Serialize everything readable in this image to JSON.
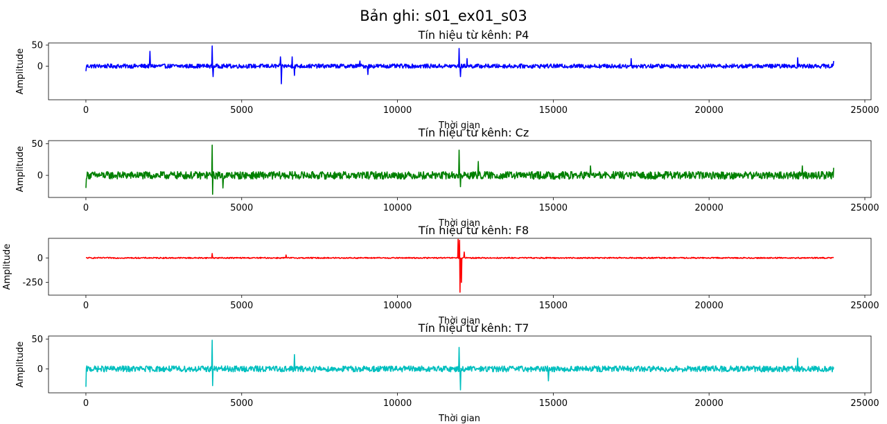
{
  "figure": {
    "title": "Bản ghi: s01_ex01_s03"
  },
  "chart_data": [
    {
      "type": "line",
      "title": "Tín hiệu từ kênh: P4",
      "xlabel": "Thời gian",
      "ylabel": "Amplitude",
      "color": "#0000ff",
      "xlim": [
        -1200,
        25200
      ],
      "ylim": [
        -80,
        55
      ],
      "xticks": [
        0,
        5000,
        10000,
        15000,
        20000,
        25000
      ],
      "yticks": [
        0,
        50
      ],
      "baseline_noise_amplitude": 5,
      "x_range": [
        0,
        24000
      ],
      "peaks": [
        {
          "x": 0,
          "y": -12
        },
        {
          "x": 2060,
          "y": 35
        },
        {
          "x": 4060,
          "y": 48
        },
        {
          "x": 4080,
          "y": -25
        },
        {
          "x": 6280,
          "y": -42
        },
        {
          "x": 6250,
          "y": 22
        },
        {
          "x": 6620,
          "y": 22
        },
        {
          "x": 6700,
          "y": -22
        },
        {
          "x": 8800,
          "y": 12
        },
        {
          "x": 9050,
          "y": -20
        },
        {
          "x": 11980,
          "y": 42
        },
        {
          "x": 12020,
          "y": -25
        },
        {
          "x": 12230,
          "y": 18
        },
        {
          "x": 17500,
          "y": 18
        },
        {
          "x": 22850,
          "y": 20
        },
        {
          "x": 24000,
          "y": 12
        }
      ]
    },
    {
      "type": "line",
      "title": "Tín hiệu từ kênh: Cz",
      "xlabel": "Thời gian",
      "ylabel": "Amplitude",
      "color": "#008000",
      "xlim": [
        -1200,
        25200
      ],
      "ylim": [
        -35,
        55
      ],
      "xticks": [
        0,
        5000,
        10000,
        15000,
        20000,
        25000
      ],
      "yticks": [
        0,
        50
      ],
      "baseline_noise_amplitude": 6,
      "x_range": [
        0,
        24000
      ],
      "peaks": [
        {
          "x": 0,
          "y": -20
        },
        {
          "x": 4050,
          "y": 48
        },
        {
          "x": 4070,
          "y": -30
        },
        {
          "x": 4400,
          "y": -20
        },
        {
          "x": 11980,
          "y": 40
        },
        {
          "x": 12020,
          "y": -18
        },
        {
          "x": 12600,
          "y": 22
        },
        {
          "x": 16200,
          "y": 15
        },
        {
          "x": 23000,
          "y": 15
        },
        {
          "x": 24000,
          "y": 12
        }
      ]
    },
    {
      "type": "line",
      "title": "Tín hiệu từ kênh: F8",
      "xlabel": "Thời gian",
      "ylabel": "Amplitude",
      "color": "#ff0000",
      "xlim": [
        -1200,
        25200
      ],
      "ylim": [
        -380,
        200
      ],
      "xticks": [
        0,
        5000,
        10000,
        15000,
        20000,
        25000
      ],
      "yticks": [
        0,
        -250
      ],
      "baseline_noise_amplitude": 6,
      "x_range": [
        0,
        24000
      ],
      "peaks": [
        {
          "x": 4050,
          "y": 45
        },
        {
          "x": 6420,
          "y": 30
        },
        {
          "x": 11950,
          "y": 190
        },
        {
          "x": 11990,
          "y": 180
        },
        {
          "x": 12010,
          "y": -350
        },
        {
          "x": 12050,
          "y": -250
        },
        {
          "x": 12150,
          "y": 60
        }
      ]
    },
    {
      "type": "line",
      "title": "Tín hiệu từ kênh: T7",
      "xlabel": "Thời gian",
      "ylabel": "Amplitude",
      "color": "#00bfbf",
      "xlim": [
        -1200,
        25200
      ],
      "ylim": [
        -40,
        55
      ],
      "xticks": [
        0,
        5000,
        10000,
        15000,
        20000,
        25000
      ],
      "yticks": [
        0,
        50
      ],
      "baseline_noise_amplitude": 5,
      "x_range": [
        0,
        24000
      ],
      "peaks": [
        {
          "x": 0,
          "y": -30
        },
        {
          "x": 4050,
          "y": 48
        },
        {
          "x": 4070,
          "y": -28
        },
        {
          "x": 6700,
          "y": 24
        },
        {
          "x": 11980,
          "y": 36
        },
        {
          "x": 12020,
          "y": -35
        },
        {
          "x": 14850,
          "y": -20
        },
        {
          "x": 22850,
          "y": 18
        }
      ]
    }
  ]
}
